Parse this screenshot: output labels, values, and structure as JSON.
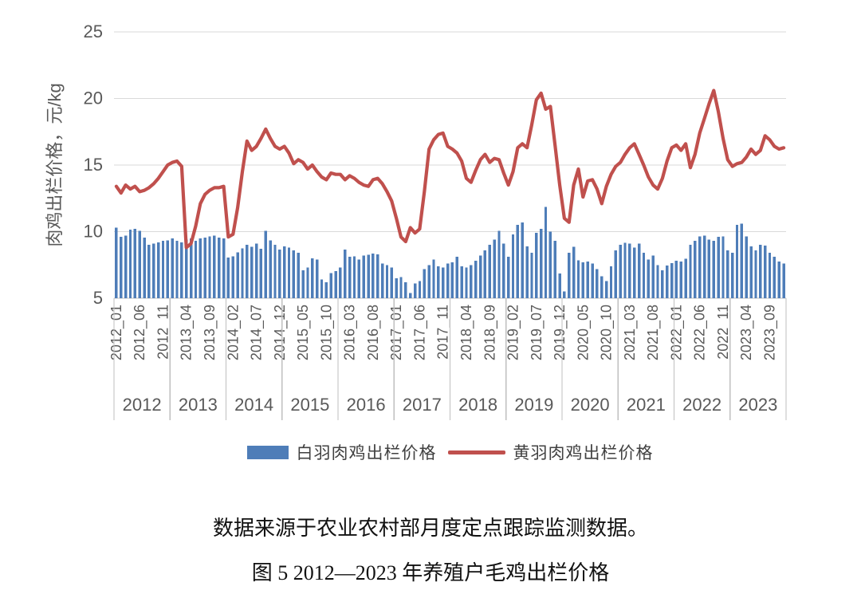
{
  "page": {
    "background": "#FFFFFF"
  },
  "chart_data": {
    "type": "bar",
    "subtype": "bar+line combo, monthly time series",
    "x_unit": "month",
    "x_start": "2012_01",
    "x_end": "2023_12",
    "n_points": 144,
    "ylabel": "肉鸡出栏价格，元/kg",
    "ylim": [
      5,
      25
    ],
    "yticks": [
      "5",
      "10",
      "15",
      "20",
      "25"
    ],
    "grid": "horizontal gridlines on",
    "legend_position": "bottom",
    "month_tick_interval": 5,
    "month_tick_labels": [
      "2012_01",
      "2012_06",
      "2012_11",
      "2013_04",
      "2013_09",
      "2014_02",
      "2014_07",
      "2014_12",
      "2015_05",
      "2015_10",
      "2016_03",
      "2016_08",
      "2017_01",
      "2017_06",
      "2017_11",
      "2018_04",
      "2018_09",
      "2019_02",
      "2019_07",
      "2019_12",
      "2020_05",
      "2020_10",
      "2021_03",
      "2021_08",
      "2022_01",
      "2022_06",
      "2022_11",
      "2023_04",
      "2023_09"
    ],
    "year_labels": [
      "2012",
      "2013",
      "2014",
      "2015",
      "2016",
      "2017",
      "2018",
      "2019",
      "2020",
      "2021",
      "2022",
      "2023"
    ],
    "axis_color": "#BFBFBF",
    "grid_color": "#D9D9D9",
    "tick_text_color": "#595959",
    "series": [
      {
        "name": "白羽肉鸡出栏价格",
        "type": "bar",
        "color": "#4E7DB8",
        "values": [
          10.3,
          9.6,
          9.7,
          10.15,
          10.2,
          10.05,
          9.55,
          9.0,
          9.1,
          9.2,
          9.3,
          9.35,
          9.5,
          9.3,
          9.2,
          9.4,
          9.5,
          9.3,
          9.5,
          9.55,
          9.65,
          9.7,
          9.55,
          9.5,
          8.05,
          8.15,
          8.45,
          8.75,
          9.0,
          8.85,
          9.1,
          8.7,
          10.05,
          9.35,
          9.0,
          8.65,
          8.9,
          8.8,
          8.6,
          8.4,
          7.1,
          7.3,
          8.0,
          7.9,
          6.4,
          6.2,
          6.9,
          7.05,
          7.3,
          8.65,
          8.1,
          8.15,
          7.9,
          8.2,
          8.25,
          8.35,
          8.3,
          7.6,
          7.5,
          7.3,
          6.5,
          6.6,
          6.2,
          5.4,
          6.1,
          6.3,
          7.2,
          7.5,
          7.9,
          7.4,
          7.3,
          7.6,
          7.7,
          8.1,
          7.4,
          7.3,
          7.5,
          7.8,
          8.2,
          8.6,
          9.0,
          9.4,
          10.05,
          9.1,
          8.1,
          9.8,
          10.5,
          10.7,
          8.9,
          8.4,
          9.9,
          10.2,
          11.85,
          10.0,
          9.3,
          6.85,
          5.5,
          8.4,
          8.85,
          7.85,
          7.7,
          7.75,
          7.6,
          7.2,
          6.65,
          6.3,
          7.4,
          8.6,
          9.0,
          9.15,
          9.1,
          8.8,
          9.1,
          8.4,
          7.9,
          8.2,
          7.5,
          7.1,
          7.45,
          7.65,
          7.8,
          7.75,
          7.95,
          9.0,
          9.3,
          9.65,
          9.7,
          9.4,
          9.3,
          9.6,
          9.65,
          8.6,
          8.4,
          10.5,
          10.6,
          9.65,
          8.9,
          8.6,
          9.0,
          8.95,
          8.4,
          8.1,
          7.75,
          7.6
        ]
      },
      {
        "name": "黄羽肉鸡出栏价格",
        "type": "line",
        "color": "#C0504D",
        "values": [
          13.4,
          12.9,
          13.5,
          13.2,
          13.4,
          13.0,
          13.1,
          13.3,
          13.6,
          14.0,
          14.5,
          15.0,
          15.2,
          15.3,
          14.9,
          8.8,
          9.1,
          10.4,
          12.1,
          12.8,
          13.1,
          13.3,
          13.3,
          13.4,
          9.6,
          9.8,
          11.8,
          14.5,
          16.8,
          16.1,
          16.4,
          17.0,
          17.7,
          17.0,
          16.4,
          16.2,
          16.4,
          15.9,
          15.1,
          15.4,
          15.2,
          14.7,
          15.0,
          14.5,
          14.1,
          13.9,
          14.4,
          14.3,
          14.3,
          13.9,
          14.2,
          14.0,
          13.7,
          13.5,
          13.4,
          13.9,
          14.0,
          13.6,
          13.0,
          12.3,
          11.0,
          9.6,
          9.25,
          10.3,
          9.9,
          10.2,
          13.0,
          16.2,
          16.9,
          17.3,
          17.4,
          16.4,
          16.2,
          15.9,
          15.3,
          14.0,
          13.7,
          14.6,
          15.4,
          15.8,
          15.2,
          15.5,
          15.4,
          14.4,
          13.5,
          14.5,
          16.3,
          16.6,
          16.3,
          18.0,
          19.9,
          20.4,
          19.2,
          19.4,
          16.5,
          13.5,
          11.0,
          10.7,
          13.5,
          14.7,
          12.6,
          13.8,
          13.9,
          13.2,
          12.1,
          13.4,
          14.3,
          14.9,
          15.2,
          15.8,
          16.3,
          16.6,
          15.8,
          15.0,
          14.1,
          13.5,
          13.2,
          14.0,
          15.3,
          16.3,
          16.5,
          16.1,
          16.6,
          14.8,
          15.8,
          17.4,
          18.5,
          19.6,
          20.6,
          19.0,
          17.0,
          15.4,
          14.9,
          15.1,
          15.2,
          15.6,
          16.2,
          15.8,
          16.1,
          17.2,
          16.9,
          16.4,
          16.2,
          16.3
        ]
      }
    ]
  },
  "legend": {
    "items": [
      {
        "label": "白羽肉鸡出栏价格",
        "swatch": "bar"
      },
      {
        "label": "黄羽肉鸡出栏价格",
        "swatch": "line"
      }
    ]
  },
  "captions": {
    "source_note": "数据来源于农业农村部月度定点跟踪监测数据。",
    "figure_title": "图 5 2012—2023 年养殖户毛鸡出栏价格"
  }
}
